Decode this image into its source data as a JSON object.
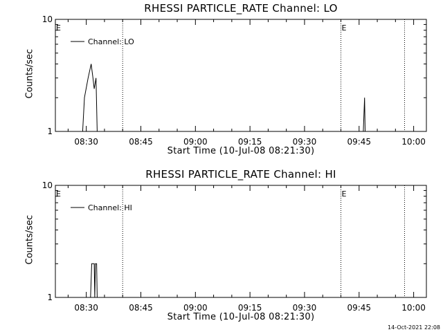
{
  "footer": {
    "date": "14-Oct-2021 22:08"
  },
  "chart_data": [
    {
      "type": "line",
      "title": "RHESSI PARTICLE_RATE Channel: LO",
      "xlabel": "Start Time (10-Jul-08 08:21:30)",
      "ylabel": "Counts/sec",
      "yscale": "log",
      "ylim": [
        1,
        10
      ],
      "xlim": [
        "08:21:30",
        "10:03:30"
      ],
      "x_ticks": [
        "08:30",
        "08:45",
        "09:00",
        "09:15",
        "09:30",
        "09:45",
        "10:00"
      ],
      "y_ticks": [
        "1",
        "10"
      ],
      "legend": {
        "placement": "top-left",
        "entries": [
          "Channel: LO"
        ]
      },
      "event_markers": [
        {
          "time": "08:21:30",
          "label": "E"
        },
        {
          "time": "08:40:00",
          "label": ""
        },
        {
          "time": "09:40:00",
          "label": "E"
        },
        {
          "time": "09:57:30",
          "label": ""
        }
      ],
      "series": [
        {
          "name": "Channel: LO",
          "points": [
            [
              "08:29:00",
              1
            ],
            [
              "08:29:30",
              2.0
            ],
            [
              "08:30:30",
              3.0
            ],
            [
              "08:31:20",
              4.0
            ],
            [
              "08:31:50",
              3.0
            ],
            [
              "08:32:10",
              2.4
            ],
            [
              "08:32:40",
              3.0
            ],
            [
              "08:33:00",
              1
            ],
            [
              "09:46:10",
              1
            ],
            [
              "09:46:30",
              2.0
            ],
            [
              "09:46:40",
              1
            ]
          ]
        }
      ]
    },
    {
      "type": "line",
      "title": "RHESSI PARTICLE_RATE Channel: HI",
      "xlabel": "Start Time (10-Jul-08 08:21:30)",
      "ylabel": "Counts/sec",
      "yscale": "log",
      "ylim": [
        1,
        10
      ],
      "xlim": [
        "08:21:30",
        "10:03:30"
      ],
      "x_ticks": [
        "08:30",
        "08:45",
        "09:00",
        "09:15",
        "09:30",
        "09:45",
        "10:00"
      ],
      "y_ticks": [
        "1",
        "10"
      ],
      "legend": {
        "placement": "top-left",
        "entries": [
          "Channel: HI"
        ]
      },
      "event_markers": [
        {
          "time": "08:21:30",
          "label": "E"
        },
        {
          "time": "08:40:00",
          "label": ""
        },
        {
          "time": "09:40:00",
          "label": "E"
        },
        {
          "time": "09:57:30",
          "label": ""
        }
      ],
      "series": [
        {
          "name": "Channel: HI",
          "points": [
            [
              "08:31:10",
              1
            ],
            [
              "08:31:30",
              2.0
            ],
            [
              "08:32:10",
              2.0
            ],
            [
              "08:32:20",
              1
            ],
            [
              "08:32:30",
              2.0
            ],
            [
              "08:32:50",
              2.0
            ],
            [
              "08:33:00",
              1
            ]
          ]
        }
      ]
    }
  ]
}
